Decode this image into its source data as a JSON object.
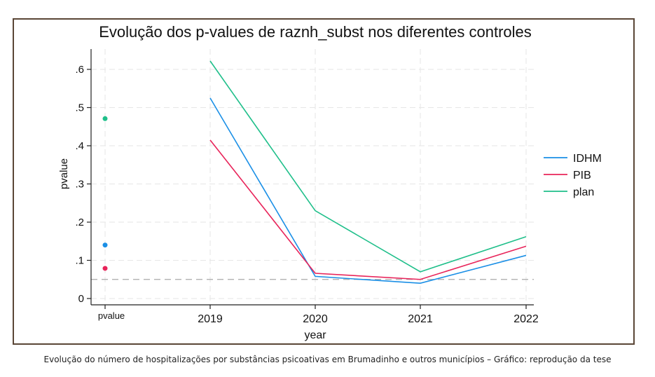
{
  "chart_data": {
    "type": "line",
    "title": "Evolução dos p-values de raznh_subst nos diferentes controles",
    "xlabel": "year",
    "ylabel": "pvalue",
    "x_categories": [
      "pvalue",
      "2019",
      "2020",
      "2021",
      "2022"
    ],
    "ylim": [
      0,
      0.62
    ],
    "yticks": [
      {
        "value": 0,
        "label": "0"
      },
      {
        "value": 0.1,
        "label": ".1"
      },
      {
        "value": 0.2,
        "label": ".2"
      },
      {
        "value": 0.3,
        "label": ".3"
      },
      {
        "value": 0.4,
        "label": ".4"
      },
      {
        "value": 0.5,
        "label": ".5"
      },
      {
        "value": 0.6,
        "label": ".6"
      }
    ],
    "reference_line": {
      "value": 0.05,
      "style": "dashed",
      "color": "#aaaaaa"
    },
    "grid": true,
    "legend_position": "right",
    "series": [
      {
        "name": "IDHM",
        "color": "#1a8fe6",
        "points": [
          {
            "x": "pvalue",
            "y": 0.14
          }
        ],
        "line": [
          {
            "x": "2019",
            "y": 0.525
          },
          {
            "x": "2020",
            "y": 0.058
          },
          {
            "x": "2021",
            "y": 0.04
          },
          {
            "x": "2022",
            "y": 0.113
          }
        ]
      },
      {
        "name": "PIB",
        "color": "#e8245a",
        "points": [
          {
            "x": "pvalue",
            "y": 0.079
          }
        ],
        "line": [
          {
            "x": "2019",
            "y": 0.415
          },
          {
            "x": "2020",
            "y": 0.066
          },
          {
            "x": "2021",
            "y": 0.05
          },
          {
            "x": "2022",
            "y": 0.137
          }
        ]
      },
      {
        "name": "plan",
        "color": "#1fbf8a",
        "points": [
          {
            "x": "pvalue",
            "y": 0.471
          }
        ],
        "line": [
          {
            "x": "2019",
            "y": 0.622
          },
          {
            "x": "2020",
            "y": 0.23
          },
          {
            "x": "2021",
            "y": 0.07
          },
          {
            "x": "2022",
            "y": 0.162
          }
        ]
      }
    ]
  },
  "caption": "Evolução do número de hospitalizações por substâncias psicoativas em Brumadinho e outros municípios – Gráfico: reprodução da tese"
}
